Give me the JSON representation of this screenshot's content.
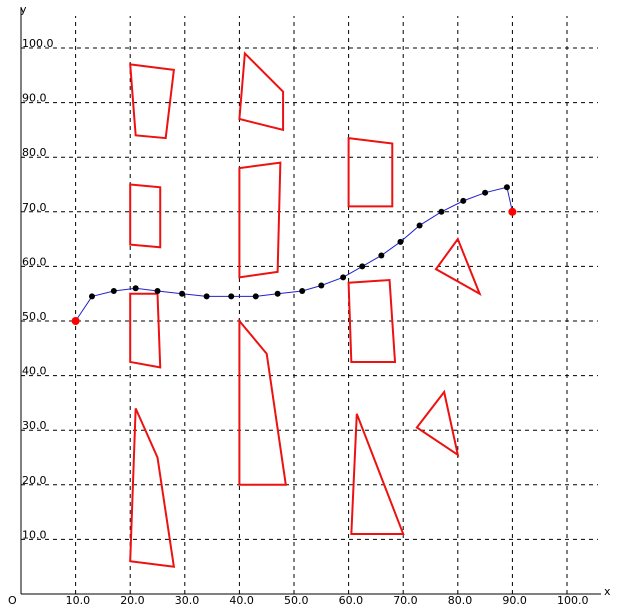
{
  "chart_data": {
    "type": "scatter",
    "x_label": "x",
    "y_label": "y",
    "origin_label": "O",
    "xlim": [
      0,
      105
    ],
    "ylim": [
      0,
      105
    ],
    "x_ticks": [
      {
        "value": 10,
        "label": "10.0"
      },
      {
        "value": 20,
        "label": "20.0"
      },
      {
        "value": 30,
        "label": "30.0"
      },
      {
        "value": 40,
        "label": "40.0"
      },
      {
        "value": 50,
        "label": "50.0"
      },
      {
        "value": 60,
        "label": "60.0"
      },
      {
        "value": 70,
        "label": "70.0"
      },
      {
        "value": 80,
        "label": "80.0"
      },
      {
        "value": 90,
        "label": "90.0"
      },
      {
        "value": 100,
        "label": "100.0"
      }
    ],
    "y_ticks": [
      {
        "value": 10,
        "label": "10.0"
      },
      {
        "value": 20,
        "label": "20.0"
      },
      {
        "value": 30,
        "label": "30.0"
      },
      {
        "value": 40,
        "label": "40.0"
      },
      {
        "value": 50,
        "label": "50.0"
      },
      {
        "value": 60,
        "label": "60.0"
      },
      {
        "value": 70,
        "label": "70.0"
      },
      {
        "value": 80,
        "label": "80.0"
      },
      {
        "value": 90,
        "label": "90.0"
      },
      {
        "value": 100,
        "label": "100.0"
      }
    ],
    "grid": true,
    "colors": {
      "obstacle": "#ee1111",
      "path": "#2222cc",
      "waypoint": "#000000",
      "endpoint": "#ff0000",
      "grid": "#000000"
    },
    "obstacles": [
      [
        [
          20,
          97
        ],
        [
          28,
          96
        ],
        [
          26.5,
          83.5
        ],
        [
          21,
          84
        ]
      ],
      [
        [
          41,
          99
        ],
        [
          48,
          92
        ],
        [
          48,
          85
        ],
        [
          40,
          87
        ]
      ],
      [
        [
          60,
          83.5
        ],
        [
          68,
          82.5
        ],
        [
          68,
          71
        ],
        [
          60,
          71
        ]
      ],
      [
        [
          20,
          75
        ],
        [
          25.5,
          74.5
        ],
        [
          25.5,
          63.5
        ],
        [
          20,
          64
        ]
      ],
      [
        [
          40,
          78
        ],
        [
          47.5,
          79
        ],
        [
          47,
          59
        ],
        [
          40,
          58
        ]
      ],
      [
        [
          80,
          65
        ],
        [
          76,
          59.5
        ],
        [
          84,
          55
        ]
      ],
      [
        [
          20,
          55
        ],
        [
          25,
          55
        ],
        [
          25.5,
          41.5
        ],
        [
          20,
          42.5
        ]
      ],
      [
        [
          60,
          57
        ],
        [
          67.5,
          57.5
        ],
        [
          68.5,
          42.5
        ],
        [
          60.5,
          42.5
        ]
      ],
      [
        [
          40,
          50
        ],
        [
          45,
          44
        ],
        [
          48.5,
          20
        ],
        [
          40,
          20
        ]
      ],
      [
        [
          21,
          34
        ],
        [
          25,
          25
        ],
        [
          28,
          5
        ],
        [
          20,
          6
        ]
      ],
      [
        [
          77.5,
          37
        ],
        [
          72.5,
          30.5
        ],
        [
          80,
          25.5
        ]
      ],
      [
        [
          61.5,
          33
        ],
        [
          70,
          11
        ],
        [
          60.5,
          11
        ]
      ]
    ],
    "path": [
      [
        10,
        50
      ],
      [
        13,
        54.5
      ],
      [
        17,
        55.5
      ],
      [
        21,
        56
      ],
      [
        25,
        55.5
      ],
      [
        29.5,
        55
      ],
      [
        34,
        54.5
      ],
      [
        38.5,
        54.5
      ],
      [
        43,
        54.5
      ],
      [
        47,
        55
      ],
      [
        51.5,
        55.5
      ],
      [
        55,
        56.5
      ],
      [
        59,
        58
      ],
      [
        62.5,
        60
      ],
      [
        66,
        62
      ],
      [
        69.5,
        64.5
      ],
      [
        73,
        67.5
      ],
      [
        77,
        70
      ],
      [
        81,
        72
      ],
      [
        85,
        73.5
      ],
      [
        89,
        74.5
      ],
      [
        90,
        70
      ]
    ],
    "start": [
      10,
      50
    ],
    "goal": [
      90,
      70
    ]
  }
}
